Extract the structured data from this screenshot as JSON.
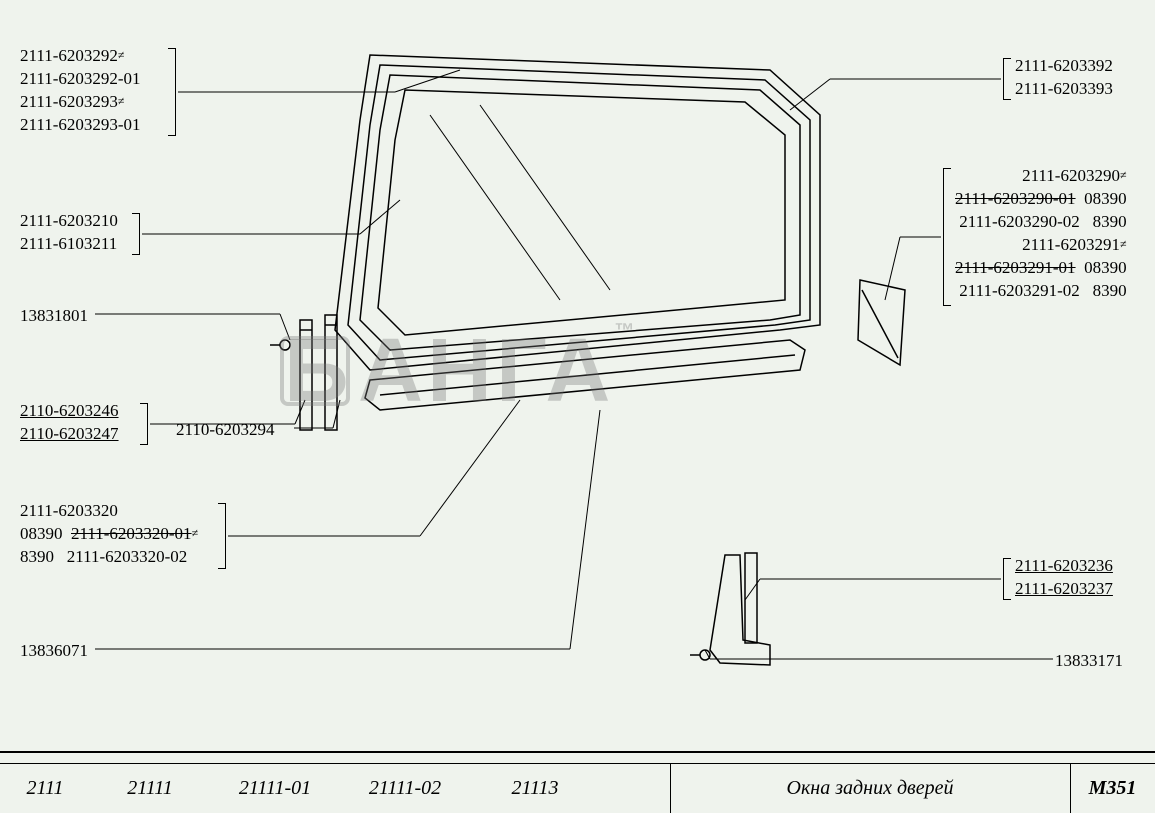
{
  "labels": {
    "top_left": {
      "l1": "2111-6203292",
      "l2": "2111-6203292-01",
      "l3": "2111-6203293",
      "l4": "2111-6203293-01"
    },
    "mid_left_pair": {
      "l1": "2111-6203210",
      "l2": "2111-6103211"
    },
    "single_left": "13831801",
    "underline_left_pair": {
      "l1": "2110-6203246",
      "l2": "2110-6203247"
    },
    "inline_single": "2110-6203294",
    "lower_left_group": {
      "l1": "2111-6203320",
      "l2a": "08390",
      "l2b": "2111-6203320-01",
      "l3a": "8390",
      "l3b": "2111-6203320-02"
    },
    "bottom_left_single": "13836071",
    "top_right_pair": {
      "l1": "2111-6203392",
      "l2": "2111-6203393"
    },
    "right_big": {
      "r1": "2111-6203290",
      "r2a": "2111-6203290-01",
      "r2b": "08390",
      "r3a": "2111-6203290-02",
      "r3b": "8390",
      "r4": "2111-6203291",
      "r5a": "2111-6203291-01",
      "r5b": "08390",
      "r6a": "2111-6203291-02",
      "r6b": "8390"
    },
    "right_lower_pair": {
      "l1": "2111-6203236",
      "l2": "2111-6203237"
    },
    "bottom_right_single": "13833171"
  },
  "footer": {
    "m1": "2111",
    "m2": "21111",
    "m3": "21111-01",
    "m4": "21111-02",
    "m5": "21113",
    "title": "Окна задних дверей",
    "code": "M351"
  },
  "watermark": "БАНГА",
  "colors": {
    "background": "#eff3ed",
    "line": "#000000"
  }
}
